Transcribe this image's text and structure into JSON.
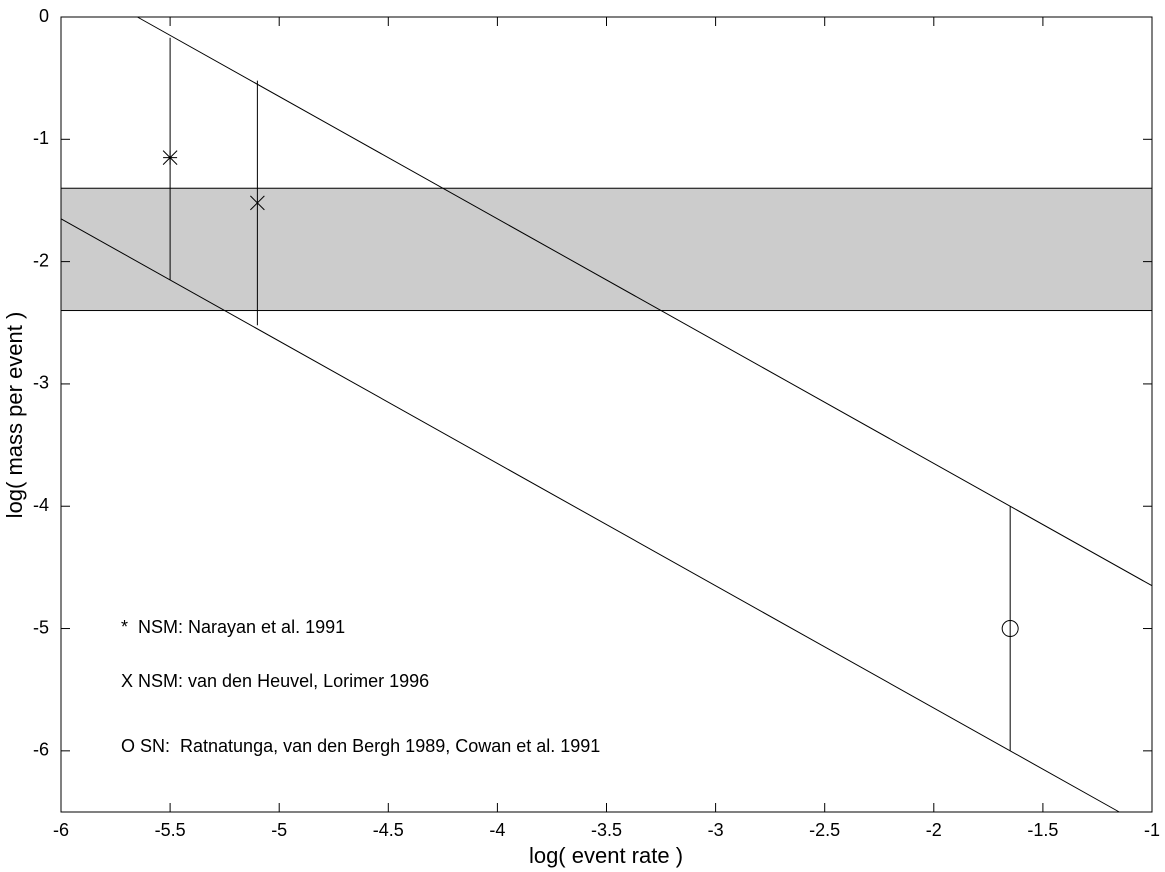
{
  "chart_data": {
    "type": "scatter",
    "x_label": "log( event rate )",
    "y_label": "log( mass per event )",
    "xlim": [
      -6,
      -1
    ],
    "ylim": [
      -6.5,
      0
    ],
    "xticks": [
      -6,
      -5.5,
      -5,
      -4.5,
      -4,
      -3.5,
      -3,
      -2.5,
      -2,
      -1.5,
      -1
    ],
    "yticks": [
      -6,
      -5,
      -4,
      -3,
      -2,
      -1,
      0
    ],
    "band": [
      -2.4,
      -1.4
    ],
    "band_color": "#cccccc",
    "lines": [
      {
        "x": [
          -5.65,
          -1
        ],
        "y": [
          0,
          -4.65
        ]
      },
      {
        "x": [
          -6,
          -1.15
        ],
        "y": [
          -1.65,
          -6.5
        ]
      }
    ],
    "series": [
      {
        "marker": "asterisk",
        "x": [
          -5.5
        ],
        "y": [
          -1.15
        ],
        "y_low": [
          -2.15
        ],
        "y_high": [
          -0.17
        ]
      },
      {
        "marker": "x",
        "x": [
          -5.1
        ],
        "y": [
          -1.52
        ],
        "y_low": [
          -2.52
        ],
        "y_high": [
          -0.52
        ]
      },
      {
        "marker": "circle",
        "x": [
          -1.65
        ],
        "y": [
          -5.0
        ],
        "y_low": [
          -6.0
        ],
        "y_high": [
          -4.0
        ]
      }
    ],
    "annotations": [
      "*  NSM: Narayan et al. 1991",
      "X NSM: van den Heuvel, Lorimer 1996",
      "O SN:  Ratnatunga, van den Bergh 1989, Cowan et al. 1991"
    ]
  }
}
